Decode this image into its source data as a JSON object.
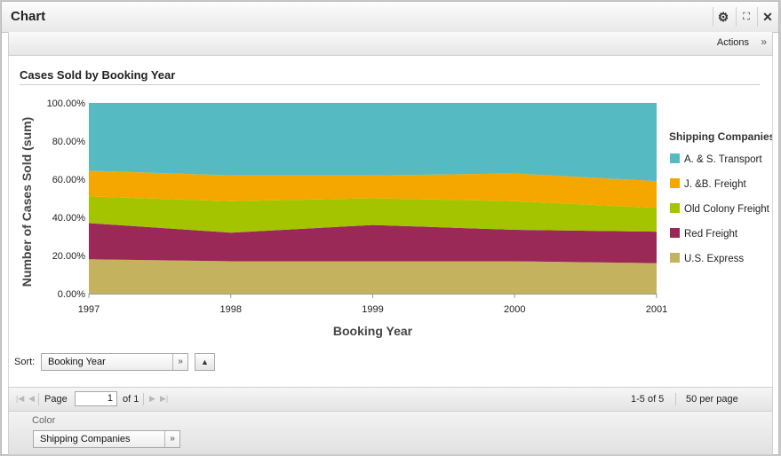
{
  "window": {
    "title": "Chart"
  },
  "toolbar": {
    "actions_label": "Actions"
  },
  "chart_data": {
    "type": "area",
    "stacked": true,
    "percent": true,
    "title": "Cases Sold by Booking Year",
    "xlabel": "Booking Year",
    "ylabel": "Number of Cases Sold (sum)",
    "x": [
      "1997",
      "1998",
      "1999",
      "2000",
      "2001"
    ],
    "ylim": [
      0,
      100
    ],
    "yticks": [
      "0.00%",
      "20.00%",
      "40.00%",
      "60.00%",
      "80.00%",
      "100.00%"
    ],
    "legend_title": "Shipping Companies",
    "legend_position": "right",
    "series": [
      {
        "name": "U.S. Express",
        "color": "#c4b25e",
        "values": [
          18,
          17,
          17,
          17,
          16
        ]
      },
      {
        "name": "Red Freight",
        "color": "#9b2958",
        "values": [
          19,
          15,
          19,
          16.5,
          16.5
        ]
      },
      {
        "name": "Old Colony Freight",
        "color": "#a4c400",
        "values": [
          14,
          16.5,
          14,
          15,
          12.5
        ]
      },
      {
        "name": "J. &B. Freight",
        "color": "#f5a700",
        "values": [
          13.5,
          13.5,
          12,
          14.5,
          14
        ]
      },
      {
        "name": "A. & S. Transport",
        "color": "#55bac2",
        "values": [
          35.5,
          38,
          38,
          37,
          41
        ]
      }
    ]
  },
  "sort": {
    "label": "Sort:",
    "value": "Booking Year",
    "direction_icon": "▲"
  },
  "pager": {
    "page_label": "Page",
    "page_value": "1",
    "of_label": "of 1",
    "range_text": "1-5 of 5",
    "per_page": "50 per page"
  },
  "color_section": {
    "label": "Color",
    "value": "Shipping Companies"
  }
}
